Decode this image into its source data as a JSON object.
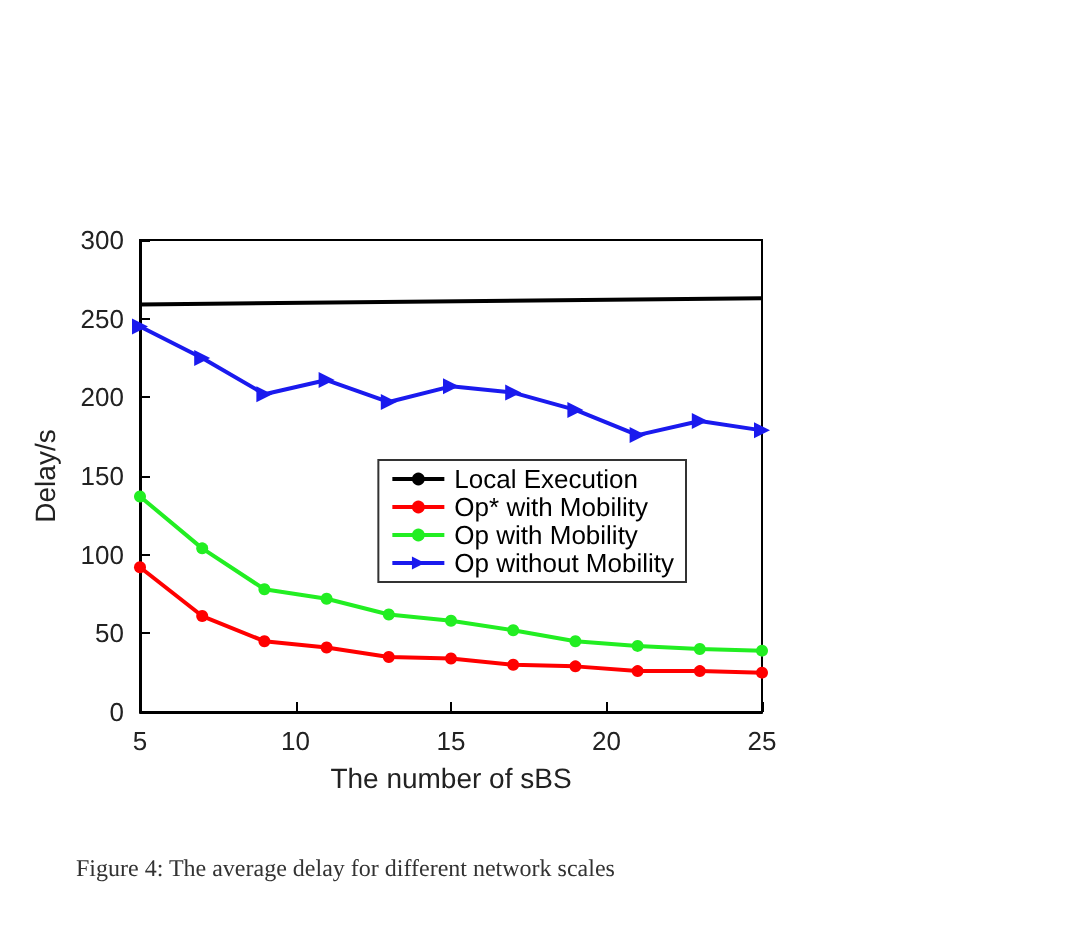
{
  "chart_data": {
    "type": "line",
    "xlabel": "The number of sBS",
    "ylabel": "Delay/s",
    "x": [
      5,
      7,
      9,
      11,
      13,
      15,
      17,
      19,
      21,
      23,
      25
    ],
    "series": [
      {
        "name": "Local Execution",
        "color": "#000000",
        "x": [
          5,
          25
        ],
        "values": [
          259,
          263
        ],
        "marker": "none"
      },
      {
        "name": "Op* with Mobility",
        "color": "#ff0000",
        "values": [
          92,
          61,
          45,
          41,
          35,
          34,
          30,
          29,
          26,
          26,
          25
        ],
        "marker": "circle"
      },
      {
        "name": "Op with Mobility",
        "color": "#22ee22",
        "values": [
          137,
          104,
          78,
          72,
          62,
          58,
          52,
          45,
          42,
          40,
          39
        ],
        "marker": "circle"
      },
      {
        "name": "Op without Mobility",
        "color": "#1a1aee",
        "values": [
          245,
          225,
          202,
          211,
          197,
          207,
          203,
          192,
          176,
          185,
          179
        ],
        "marker": "triangle"
      }
    ],
    "xlim": [
      5,
      25
    ],
    "xticks": [
      5,
      10,
      15,
      20,
      25
    ],
    "ylim": [
      0,
      300
    ],
    "yticks": [
      0,
      50,
      100,
      150,
      200,
      250,
      300
    ],
    "grid": false,
    "legend": "right",
    "line_style": "solid",
    "annotations": [
      "Figure 4: The average delay for different network scales"
    ]
  }
}
